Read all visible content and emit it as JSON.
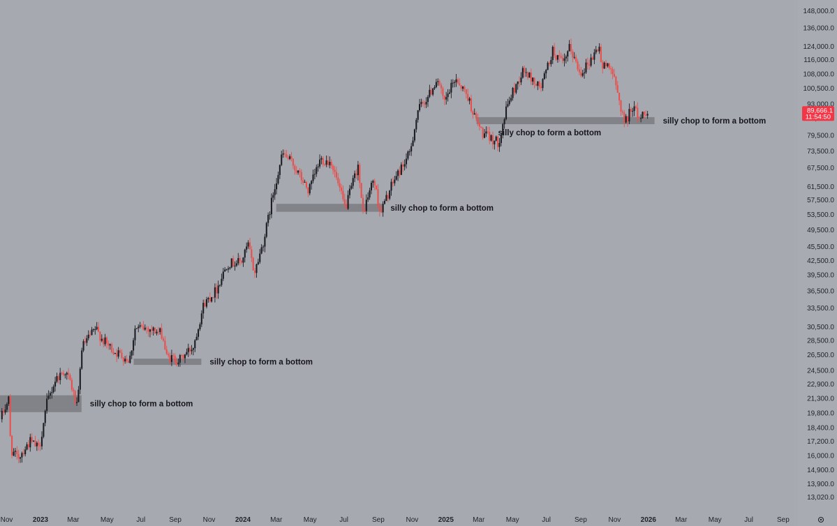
{
  "chart_data": {
    "type": "candlestick",
    "y_scale": "log",
    "ylim": [
      12500,
      152000
    ],
    "xlim": [
      "2022-10-20",
      "2026-09-20"
    ],
    "y_ticks": [
      "148,000.0",
      "136,000.0",
      "124,000.0",
      "116,000.0",
      "108,000.0",
      "100,500.0",
      "93,000.0",
      "86,500.0",
      "79,500.0",
      "73,500.0",
      "67,500.0",
      "61,500.0",
      "57,500.0",
      "53,500.0",
      "49,500.0",
      "45,500.0",
      "42,500.0",
      "39,500.0",
      "36,500.0",
      "33,500.0",
      "30,500.0",
      "28,500.0",
      "26,500.0",
      "24,500.0",
      "22,900.0",
      "21,300.0",
      "19,800.0",
      "18,400.0",
      "17,200.0",
      "16,000.0",
      "14,900.0",
      "13,900.0",
      "13,020.0"
    ],
    "x_ticks": [
      {
        "label": "Nov",
        "date": "2022-11-01"
      },
      {
        "label": "2023",
        "date": "2023-01-01",
        "year": true
      },
      {
        "label": "Mar",
        "date": "2023-03-01"
      },
      {
        "label": "May",
        "date": "2023-05-01"
      },
      {
        "label": "Jul",
        "date": "2023-07-01"
      },
      {
        "label": "Sep",
        "date": "2023-09-01"
      },
      {
        "label": "Nov",
        "date": "2023-11-01"
      },
      {
        "label": "2024",
        "date": "2024-01-01",
        "year": true
      },
      {
        "label": "Mar",
        "date": "2024-03-01"
      },
      {
        "label": "May",
        "date": "2024-05-01"
      },
      {
        "label": "Jul",
        "date": "2024-07-01"
      },
      {
        "label": "Sep",
        "date": "2024-09-01"
      },
      {
        "label": "Nov",
        "date": "2024-11-01"
      },
      {
        "label": "2025",
        "date": "2025-01-01",
        "year": true
      },
      {
        "label": "Mar",
        "date": "2025-03-01"
      },
      {
        "label": "May",
        "date": "2025-05-01"
      },
      {
        "label": "Jul",
        "date": "2025-07-01"
      },
      {
        "label": "Sep",
        "date": "2025-09-01"
      },
      {
        "label": "Nov",
        "date": "2025-11-01"
      },
      {
        "label": "2026",
        "date": "2026-01-01",
        "year": true
      },
      {
        "label": "Mar",
        "date": "2026-03-01"
      },
      {
        "label": "May",
        "date": "2026-05-01"
      },
      {
        "label": "Jul",
        "date": "2026-07-01"
      },
      {
        "label": "Sep",
        "date": "2026-09-01"
      }
    ],
    "price_path": [
      [
        "2022-10-22",
        19200
      ],
      [
        "2022-11-06",
        21200
      ],
      [
        "2022-11-10",
        16500
      ],
      [
        "2022-11-22",
        15800
      ],
      [
        "2022-12-15",
        17200
      ],
      [
        "2022-12-31",
        16550
      ],
      [
        "2023-01-14",
        20800
      ],
      [
        "2023-01-30",
        23500
      ],
      [
        "2023-02-15",
        24500
      ],
      [
        "2023-02-25",
        23200
      ],
      [
        "2023-03-10",
        20200
      ],
      [
        "2023-03-18",
        27500
      ],
      [
        "2023-04-12",
        30200
      ],
      [
        "2023-04-25",
        28500
      ],
      [
        "2023-05-15",
        27000
      ],
      [
        "2023-06-12",
        25800
      ],
      [
        "2023-06-22",
        30200
      ],
      [
        "2023-07-15",
        30300
      ],
      [
        "2023-08-10",
        29400
      ],
      [
        "2023-08-18",
        26200
      ],
      [
        "2023-09-10",
        25800
      ],
      [
        "2023-10-05",
        27700
      ],
      [
        "2023-10-24",
        34200
      ],
      [
        "2023-11-15",
        36600
      ],
      [
        "2023-12-05",
        41800
      ],
      [
        "2023-12-31",
        42300
      ],
      [
        "2024-01-12",
        46000
      ],
      [
        "2024-01-23",
        39800
      ],
      [
        "2024-02-10",
        47500
      ],
      [
        "2024-02-28",
        61000
      ],
      [
        "2024-03-14",
        72500
      ],
      [
        "2024-04-01",
        69000
      ],
      [
        "2024-04-30",
        60000
      ],
      [
        "2024-05-21",
        70500
      ],
      [
        "2024-06-10",
        69500
      ],
      [
        "2024-07-05",
        55000
      ],
      [
        "2024-07-28",
        68500
      ],
      [
        "2024-08-05",
        53500
      ],
      [
        "2024-08-25",
        64000
      ],
      [
        "2024-09-06",
        53900
      ],
      [
        "2024-10-01",
        63500
      ],
      [
        "2024-10-29",
        72500
      ],
      [
        "2024-11-13",
        90000
      ],
      [
        "2024-12-05",
        98000
      ],
      [
        "2024-12-18",
        106000
      ],
      [
        "2024-12-30",
        93000
      ],
      [
        "2025-01-20",
        106000
      ],
      [
        "2025-02-10",
        97000
      ],
      [
        "2025-02-25",
        86000
      ],
      [
        "2025-03-10",
        80000
      ],
      [
        "2025-04-07",
        76500
      ],
      [
        "2025-04-25",
        94000
      ],
      [
        "2025-05-22",
        110000
      ],
      [
        "2025-06-22",
        100500
      ],
      [
        "2025-07-14",
        121000
      ],
      [
        "2025-08-02",
        113000
      ],
      [
        "2025-08-14",
        123500
      ],
      [
        "2025-09-01",
        108500
      ],
      [
        "2025-09-20",
        115500
      ],
      [
        "2025-10-06",
        124500
      ],
      [
        "2025-10-10",
        111000
      ],
      [
        "2025-10-25",
        114000
      ],
      [
        "2025-11-05",
        101000
      ],
      [
        "2025-11-21",
        84500
      ],
      [
        "2025-12-05",
        92000
      ],
      [
        "2025-12-18",
        86500
      ],
      [
        "2025-12-29",
        89666
      ]
    ],
    "zones": [
      {
        "label": "silly chop to form a bottom",
        "start": "2022-10-20",
        "end": "2023-03-16",
        "low": 19900,
        "high": 21650,
        "label_pos": "right"
      },
      {
        "label": "silly chop to form a bottom",
        "start": "2023-06-18",
        "end": "2023-10-18",
        "low": 25200,
        "high": 26000,
        "label_pos": "right"
      },
      {
        "label": "silly chop to form a bottom",
        "start": "2024-03-01",
        "end": "2024-09-08",
        "low": 54200,
        "high": 56400,
        "label_pos": "right"
      },
      {
        "label": "silly chop to form a bottom",
        "start": "2025-02-25",
        "end": "2026-01-12",
        "low": 84000,
        "high": 87000,
        "label_pos": "right"
      },
      {
        "label": "silly chop to form a bottom",
        "start": "2025-04-05",
        "end": "2025-10-25",
        "low": 79500,
        "high": 79500,
        "label_pos": "below",
        "label_only": true
      }
    ],
    "current_price": {
      "value": "89,666.1",
      "countdown": "11:54:50",
      "color": "#f23645"
    },
    "colors": {
      "up": "#1b1d22",
      "down": "#e8504d",
      "background": "#a7a9b0",
      "zone": "#7b7c82",
      "axis_text": "#1f2228"
    },
    "grid": false
  }
}
